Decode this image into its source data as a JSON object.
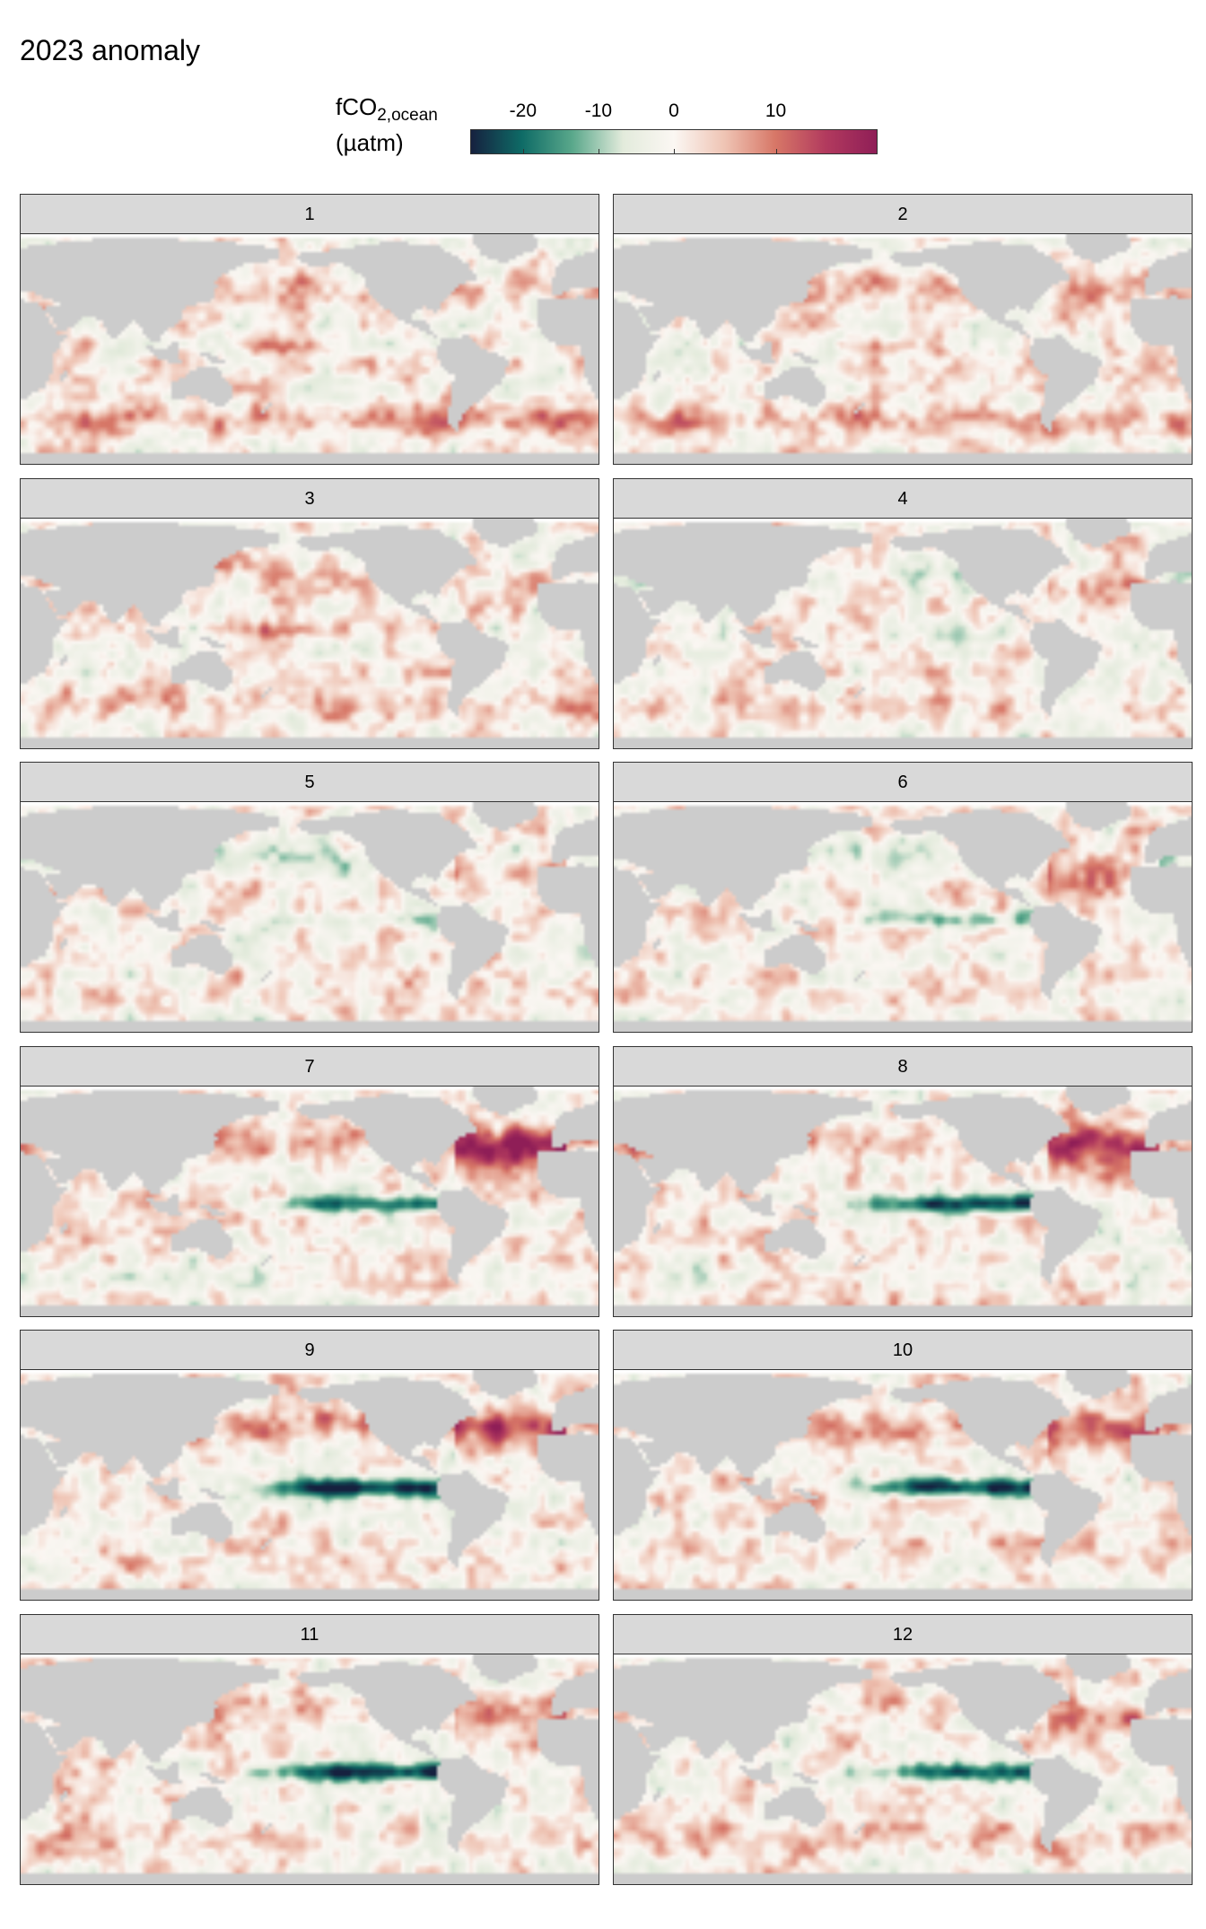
{
  "title": "2023 anomaly",
  "legend": {
    "label_main": "fCO",
    "label_sub": "2,ocean",
    "label_unit": "(µatm)",
    "min": -27,
    "max": 20,
    "ticks": [
      {
        "value": -20,
        "label": "-20"
      },
      {
        "value": -10,
        "label": "-10"
      },
      {
        "value": 0,
        "label": "0"
      },
      {
        "value": 10,
        "label": "10"
      }
    ],
    "colors": [
      "#16213f",
      "#0e6b66",
      "#5aa88b",
      "#e3ebdc",
      "#fbf7f3",
      "#efc4b4",
      "#d77767",
      "#b23a5e",
      "#8f1e57"
    ]
  },
  "land_color": "#cccccc",
  "panels": [
    {
      "label": "1",
      "equatorial": 0,
      "north": 5,
      "south": 7,
      "atlantic": 0
    },
    {
      "label": "2",
      "equatorial": 0,
      "north": 4,
      "south": 6,
      "atlantic": 1
    },
    {
      "label": "3",
      "equatorial": 0,
      "north": 2,
      "south": 4,
      "atlantic": 2
    },
    {
      "label": "4",
      "equatorial": -3,
      "north": -4,
      "south": 3,
      "atlantic": 6
    },
    {
      "label": "5",
      "equatorial": -7,
      "north": -6,
      "south": 1,
      "atlantic": 7
    },
    {
      "label": "6",
      "equatorial": -11,
      "north": -5,
      "south": 0,
      "atlantic": 9
    },
    {
      "label": "7",
      "equatorial": -18,
      "north": 5,
      "south": -2,
      "atlantic": 12
    },
    {
      "label": "8",
      "equatorial": -22,
      "north": 6,
      "south": -2,
      "atlantic": 11
    },
    {
      "label": "9",
      "equatorial": -26,
      "north": 7,
      "south": 1,
      "atlantic": 9
    },
    {
      "label": "10",
      "equatorial": -25,
      "north": 5,
      "south": 2,
      "atlantic": 8
    },
    {
      "label": "11",
      "equatorial": -25,
      "north": 4,
      "south": 3,
      "atlantic": 6
    },
    {
      "label": "12",
      "equatorial": -20,
      "north": 3,
      "south": 4,
      "atlantic": 5
    }
  ]
}
